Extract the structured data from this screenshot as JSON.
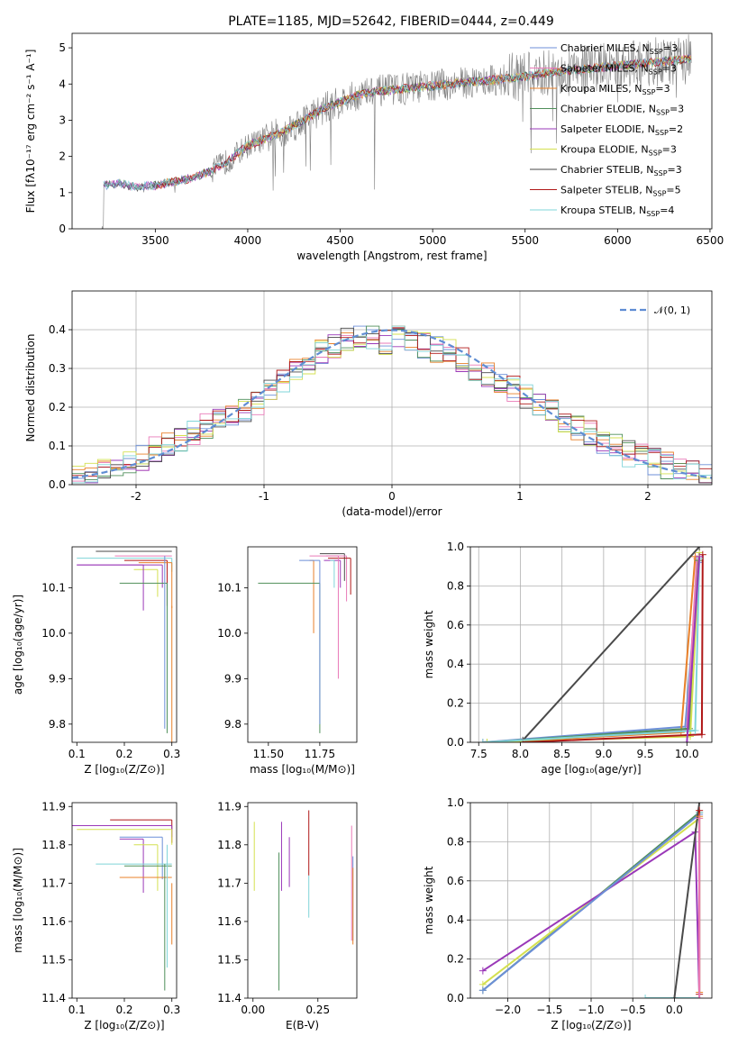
{
  "figure": {
    "title": "PLATE=1185, MJD=52642, FIBERID=0444, z=0.449"
  },
  "colors": {
    "chabrier_miles": "#6c8fd8",
    "salpeter_miles": "#e97ab8",
    "kroupa_miles": "#e8802a",
    "chabrier_elodie": "#4f8f5a",
    "salpeter_elodie": "#9a38b8",
    "kroupa_elodie": "#d4e050",
    "chabrier_stelib": "#4a4a4a",
    "salpeter_stelib": "#b01818",
    "kroupa_stelib": "#7fd4d8",
    "observed": "#7f7f7f",
    "normal": "#5f8dd3"
  },
  "chart_data": [
    {
      "id": "spectrum",
      "type": "line",
      "xlabel": "wavelength [Angstrom, rest frame]",
      "ylabel": "Flux [fλ10⁻¹⁷ erg cm⁻² s⁻¹ A⁻¹]",
      "xlim": [
        3050,
        6510
      ],
      "ylim": [
        0,
        5.4
      ],
      "xticks": [
        3500,
        4000,
        4500,
        5000,
        5500,
        6000,
        6500
      ],
      "yticks": [
        0,
        1,
        2,
        3,
        4,
        5
      ],
      "legend_position": "top-right",
      "legend": [
        {
          "label": "Chabrier MILES, N",
          "sub": "SSP",
          "suffix": "=3",
          "color": "#6c8fd8"
        },
        {
          "label": "Salpeter MILES, N",
          "sub": "SSP",
          "suffix": "=3",
          "color": "#e97ab8"
        },
        {
          "label": "Kroupa MILES, N",
          "sub": "SSP",
          "suffix": "=3",
          "color": "#e8802a"
        },
        {
          "label": "Chabrier ELODIE, N",
          "sub": "SSP",
          "suffix": "=3",
          "color": "#4f8f5a"
        },
        {
          "label": "Salpeter ELODIE, N",
          "sub": "SSP",
          "suffix": "=2",
          "color": "#9a38b8"
        },
        {
          "label": "Kroupa ELODIE, N",
          "sub": "SSP",
          "suffix": "=3",
          "color": "#d4e050"
        },
        {
          "label": "Chabrier STELIB, N",
          "sub": "SSP",
          "suffix": "=3",
          "color": "#4a4a4a"
        },
        {
          "label": "Salpeter STELIB, N",
          "sub": "SSP",
          "suffix": "=5",
          "color": "#b01818"
        },
        {
          "label": "Kroupa STELIB, N",
          "sub": "SSP",
          "suffix": "=4",
          "color": "#7fd4d8"
        }
      ],
      "model_continuum": {
        "x": [
          3220,
          3300,
          3400,
          3500,
          3600,
          3700,
          3800,
          3900,
          4000,
          4100,
          4200,
          4300,
          4400,
          4500,
          4600,
          4700,
          4800,
          4900,
          5000,
          5100,
          5200,
          5300,
          5400,
          5500,
          5600,
          5700,
          5800,
          5900,
          6000,
          6100,
          6200,
          6300,
          6400
        ],
        "y": [
          1.2,
          1.25,
          1.15,
          1.2,
          1.3,
          1.4,
          1.6,
          1.9,
          2.3,
          2.5,
          2.7,
          3.0,
          3.3,
          3.5,
          3.7,
          3.8,
          3.85,
          3.9,
          3.95,
          4.0,
          4.05,
          4.1,
          4.15,
          4.2,
          4.3,
          4.35,
          4.4,
          4.45,
          4.5,
          4.55,
          4.6,
          4.65,
          4.7
        ]
      }
    },
    {
      "id": "residuals",
      "type": "line",
      "xlabel": "(data-model)/error",
      "ylabel": "Normed distribution",
      "xlim": [
        -2.5,
        2.5
      ],
      "ylim": [
        0,
        0.5
      ],
      "xticks": [
        -2,
        -1,
        0,
        1,
        2
      ],
      "yticks": [
        0.0,
        0.1,
        0.2,
        0.3,
        0.4
      ],
      "legend_position": "top-right",
      "normal_label": "𝒩(0, 1)",
      "histogram_centers": [
        -2.45,
        -2.35,
        -2.25,
        -2.15,
        -2.05,
        -1.95,
        -1.85,
        -1.75,
        -1.65,
        -1.55,
        -1.45,
        -1.35,
        -1.25,
        -1.15,
        -1.05,
        -0.95,
        -0.85,
        -0.75,
        -0.65,
        -0.55,
        -0.45,
        -0.35,
        -0.25,
        -0.15,
        -0.05,
        0.05,
        0.15,
        0.25,
        0.35,
        0.45,
        0.55,
        0.65,
        0.75,
        0.85,
        0.95,
        1.05,
        1.15,
        1.25,
        1.35,
        1.45,
        1.55,
        1.65,
        1.75,
        1.85,
        1.95,
        2.05,
        2.15,
        2.25,
        2.35,
        2.45
      ],
      "histogram_values": [
        0.02,
        0.03,
        0.04,
        0.05,
        0.06,
        0.07,
        0.09,
        0.1,
        0.11,
        0.13,
        0.15,
        0.16,
        0.17,
        0.19,
        0.21,
        0.24,
        0.27,
        0.3,
        0.32,
        0.34,
        0.36,
        0.37,
        0.39,
        0.38,
        0.37,
        0.38,
        0.37,
        0.36,
        0.35,
        0.34,
        0.32,
        0.3,
        0.28,
        0.27,
        0.25,
        0.23,
        0.21,
        0.19,
        0.17,
        0.15,
        0.13,
        0.11,
        0.1,
        0.08,
        0.07,
        0.06,
        0.05,
        0.04,
        0.03,
        0.02
      ]
    },
    {
      "id": "age-vs-z",
      "type": "scatter",
      "xlabel": "Z [log₁₀(Z/Z⊙)]",
      "ylabel": "age  [log₁₀(age/yr)]",
      "xlim": [
        0.09,
        0.31
      ],
      "ylim": [
        9.76,
        10.19
      ],
      "xticks": [
        0.1,
        0.2,
        0.3
      ],
      "xticklabels": [
        "0.1",
        "0.2",
        "0.3"
      ],
      "yticks": [
        9.8,
        9.9,
        10.0,
        10.1
      ],
      "yticklabels": [
        "9.8",
        "9.9",
        "10.0",
        "10.1"
      ]
    },
    {
      "id": "age-vs-mass",
      "type": "scatter",
      "xlabel": "mass [log₁₀(M/M⊙)]",
      "xlim": [
        11.4,
        11.93
      ],
      "ylim": [
        9.76,
        10.19
      ],
      "xticks": [
        11.5,
        11.75
      ],
      "xticklabels": [
        "11.50",
        "11.75"
      ],
      "yticks": [
        9.8,
        9.9,
        10.0,
        10.1
      ],
      "yticklabels": [
        "9.8",
        "9.9",
        "10.0",
        "10.1"
      ]
    },
    {
      "id": "mass-weight-vs-age",
      "type": "line",
      "xlabel": "age  [log₁₀(age/yr)]",
      "ylabel": "mass weight",
      "xlim": [
        7.4,
        10.3
      ],
      "ylim": [
        0,
        1.0
      ],
      "xticks": [
        7.5,
        8.0,
        8.5,
        9.0,
        9.5,
        10.0
      ],
      "xticklabels": [
        "7.5",
        "8.0",
        "8.5",
        "9.0",
        "9.5",
        "10.0"
      ],
      "yticks": [
        0.0,
        0.2,
        0.4,
        0.6,
        0.8,
        1.0
      ],
      "yticklabels": [
        "0.0",
        "0.2",
        "0.4",
        "0.6",
        "0.8",
        "1.0"
      ]
    },
    {
      "id": "mass-vs-z",
      "type": "scatter",
      "xlabel": "Z [log₁₀(Z/Z⊙)]",
      "ylabel": "mass [log₁₀(M/M⊙)]",
      "xlim": [
        0.09,
        0.31
      ],
      "ylim": [
        11.4,
        11.91
      ],
      "xticks": [
        0.1,
        0.2,
        0.3
      ],
      "xticklabels": [
        "0.1",
        "0.2",
        "0.3"
      ],
      "yticks": [
        11.4,
        11.5,
        11.6,
        11.7,
        11.8,
        11.9
      ],
      "yticklabels": [
        "11.4",
        "11.5",
        "11.6",
        "11.7",
        "11.8",
        "11.9"
      ]
    },
    {
      "id": "mass-vs-ebv",
      "type": "scatter",
      "xlabel": "E(B-V)",
      "xlim": [
        -0.02,
        0.4
      ],
      "ylim": [
        11.4,
        11.91
      ],
      "xticks": [
        0.0,
        0.25
      ],
      "xticklabels": [
        "0.00",
        "0.25"
      ],
      "yticks": [
        11.4,
        11.5,
        11.6,
        11.7,
        11.8,
        11.9
      ],
      "yticklabels": [
        "11.4",
        "11.5",
        "11.6",
        "11.7",
        "11.8",
        "11.9"
      ]
    },
    {
      "id": "mass-weight-vs-z",
      "type": "line",
      "xlabel": "Z [log₁₀(Z/Z⊙)]",
      "ylabel": "mass weight",
      "xlim": [
        -2.45,
        0.45
      ],
      "ylim": [
        0,
        1.0
      ],
      "xticks": [
        -2.0,
        -1.5,
        -1.0,
        -0.5,
        0.0
      ],
      "xticklabels": [
        "−2.0",
        "−1.5",
        "−1.0",
        "−0.5",
        "0.0"
      ],
      "yticks": [
        0.0,
        0.2,
        0.4,
        0.6,
        0.8,
        1.0
      ],
      "yticklabels": [
        "0.0",
        "0.2",
        "0.4",
        "0.6",
        "0.8",
        "1.0"
      ]
    }
  ]
}
